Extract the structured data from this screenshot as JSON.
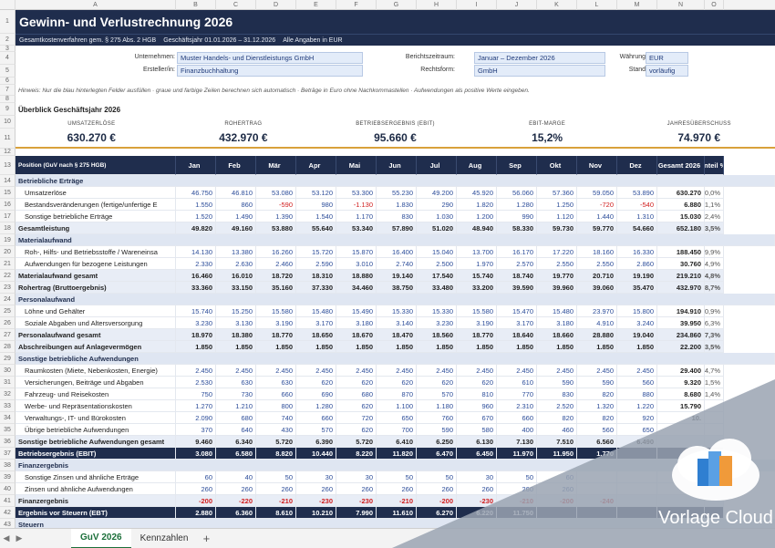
{
  "columns": [
    "A",
    "B",
    "C",
    "D",
    "E",
    "F",
    "G",
    "H",
    "I",
    "J",
    "K",
    "L",
    "M",
    "N",
    "O"
  ],
  "title": "Gewinn- und Verlustrechnung 2026",
  "subtitle": [
    "Gesamtkostenverfahren gem. § 275 Abs. 2 HGB",
    "Geschäftsjahr 01.01.2026 – 31.12.2026",
    "Alle Angaben in EUR"
  ],
  "form": {
    "company_label": "Unternehmen:",
    "company": "Muster Handels- und Dienstleistungs GmbH",
    "creator_label": "Ersteller/in:",
    "creator": "Finanzbuchhaltung",
    "period_label": "Berichtszeitraum:",
    "period": "Januar – Dezember 2026",
    "legal_label": "Rechtsform:",
    "legal": "GmbH",
    "currency_label": "Währung:",
    "currency": "EUR",
    "status_label": "Stand:",
    "status": "vorläufig"
  },
  "hint": "Hinweis:  Nur die blau hinterlegten Felder ausfüllen · graue und farbige Zeilen berechnen sich automatisch · Beträge in Euro ohne Nachkommastellen · Aufwendungen als positive Werte eingeben.",
  "overview_title": "Überblick Geschäftsjahr 2026",
  "kpis": [
    {
      "label": "UMSATZERLÖSE",
      "value": "630.270 €"
    },
    {
      "label": "ROHERTRAG",
      "value": "432.970 €"
    },
    {
      "label": "BETRIEBSERGEBNIS (EBIT)",
      "value": "95.660 €"
    },
    {
      "label": "EBIT-MARGE",
      "value": "15,2%"
    },
    {
      "label": "JAHRESÜBERSCHUSS",
      "value": "74.970 €"
    }
  ],
  "table_header": [
    "Position (GuV nach § 275 HGB)",
    "Jan",
    "Feb",
    "Mär",
    "Apr",
    "Mai",
    "Jun",
    "Jul",
    "Aug",
    "Sep",
    "Okt",
    "Nov",
    "Dez",
    "Gesamt 2026",
    "Anteil %"
  ],
  "rows": [
    {
      "n": "14",
      "type": "grp",
      "cells": [
        "Betriebliche Erträge"
      ]
    },
    {
      "n": "15",
      "type": "item",
      "cells": [
        "Umsatzerlöse",
        "46.750",
        "46.810",
        "53.080",
        "53.120",
        "53.300",
        "55.230",
        "49.200",
        "45.920",
        "56.060",
        "57.360",
        "59.050",
        "53.890",
        "630.270",
        "100,0%"
      ]
    },
    {
      "n": "16",
      "type": "item",
      "cells": [
        "Bestandsveränderungen (fertige/unfertige E",
        "1.550",
        "860",
        "-590",
        "980",
        "-1.130",
        "1.830",
        "290",
        "1.820",
        "1.280",
        "1.250",
        "-720",
        "-540",
        "6.880",
        "1,1%"
      ]
    },
    {
      "n": "17",
      "type": "item",
      "cells": [
        "Sonstige betriebliche Erträge",
        "1.520",
        "1.490",
        "1.390",
        "1.540",
        "1.170",
        "830",
        "1.030",
        "1.200",
        "990",
        "1.120",
        "1.440",
        "1.310",
        "15.030",
        "2,4%"
      ]
    },
    {
      "n": "18",
      "type": "tot",
      "cells": [
        "Gesamtleistung",
        "49.820",
        "49.160",
        "53.880",
        "55.640",
        "53.340",
        "57.890",
        "51.020",
        "48.940",
        "58.330",
        "59.730",
        "59.770",
        "54.660",
        "652.180",
        "103,5%"
      ]
    },
    {
      "n": "19",
      "type": "grp",
      "cells": [
        "Materialaufwand"
      ]
    },
    {
      "n": "20",
      "type": "item",
      "cells": [
        "Roh-, Hilfs- und Betriebsstoffe / Wareneinsa",
        "14.130",
        "13.380",
        "16.260",
        "15.720",
        "15.870",
        "16.400",
        "15.040",
        "13.700",
        "16.170",
        "17.220",
        "18.160",
        "16.330",
        "188.450",
        "29,9%"
      ]
    },
    {
      "n": "21",
      "type": "item",
      "cells": [
        "Aufwendungen für bezogene Leistungen",
        "2.330",
        "2.630",
        "2.460",
        "2.590",
        "3.010",
        "2.740",
        "2.500",
        "1.970",
        "2.570",
        "2.550",
        "2.550",
        "2.860",
        "30.760",
        "4,9%"
      ]
    },
    {
      "n": "22",
      "type": "tot",
      "cells": [
        "Materialaufwand gesamt",
        "16.460",
        "16.010",
        "18.720",
        "18.310",
        "18.880",
        "19.140",
        "17.540",
        "15.740",
        "18.740",
        "19.770",
        "20.710",
        "19.190",
        "219.210",
        "34,8%"
      ]
    },
    {
      "n": "23",
      "type": "tot",
      "cells": [
        "Rohertrag (Bruttoergebnis)",
        "33.360",
        "33.150",
        "35.160",
        "37.330",
        "34.460",
        "38.750",
        "33.480",
        "33.200",
        "39.590",
        "39.960",
        "39.060",
        "35.470",
        "432.970",
        "68,7%"
      ]
    },
    {
      "n": "24",
      "type": "grp",
      "cells": [
        "Personalaufwand"
      ]
    },
    {
      "n": "25",
      "type": "item",
      "cells": [
        "Löhne und Gehälter",
        "15.740",
        "15.250",
        "15.580",
        "15.480",
        "15.490",
        "15.330",
        "15.330",
        "15.580",
        "15.470",
        "15.480",
        "23.970",
        "15.800",
        "194.910",
        "30,9%"
      ]
    },
    {
      "n": "26",
      "type": "item",
      "cells": [
        "Soziale Abgaben und Altersversorgung",
        "3.230",
        "3.130",
        "3.190",
        "3.170",
        "3.180",
        "3.140",
        "3.230",
        "3.190",
        "3.170",
        "3.180",
        "4.910",
        "3.240",
        "39.950",
        "6,3%"
      ]
    },
    {
      "n": "27",
      "type": "tot",
      "cells": [
        "Personalaufwand gesamt",
        "18.970",
        "18.380",
        "18.770",
        "18.650",
        "18.670",
        "18.470",
        "18.560",
        "18.770",
        "18.640",
        "18.660",
        "28.880",
        "19.040",
        "234.860",
        "37,3%"
      ]
    },
    {
      "n": "28",
      "type": "tot",
      "cells": [
        "Abschreibungen auf Anlagevermögen",
        "1.850",
        "1.850",
        "1.850",
        "1.850",
        "1.850",
        "1.850",
        "1.850",
        "1.850",
        "1.850",
        "1.850",
        "1.850",
        "1.850",
        "22.200",
        "3,5%"
      ]
    },
    {
      "n": "29",
      "type": "grp",
      "cells": [
        "Sonstige betriebliche Aufwendungen"
      ]
    },
    {
      "n": "30",
      "type": "item",
      "cells": [
        "Raumkosten (Miete, Nebenkosten, Energie)",
        "2.450",
        "2.450",
        "2.450",
        "2.450",
        "2.450",
        "2.450",
        "2.450",
        "2.450",
        "2.450",
        "2.450",
        "2.450",
        "2.450",
        "29.400",
        "4,7%"
      ]
    },
    {
      "n": "31",
      "type": "item",
      "cells": [
        "Versicherungen, Beiträge und Abgaben",
        "2.530",
        "630",
        "630",
        "620",
        "620",
        "620",
        "620",
        "620",
        "610",
        "590",
        "590",
        "560",
        "9.320",
        "1,5%"
      ]
    },
    {
      "n": "32",
      "type": "item",
      "cells": [
        "Fahrzeug- und Reisekosten",
        "750",
        "730",
        "660",
        "690",
        "680",
        "870",
        "570",
        "810",
        "770",
        "830",
        "820",
        "880",
        "8.680",
        "1,4%"
      ]
    },
    {
      "n": "33",
      "type": "item",
      "cells": [
        "Werbe- und Repräsentationskosten",
        "1.270",
        "1.210",
        "800",
        "1.280",
        "620",
        "1.100",
        "1.180",
        "960",
        "2.310",
        "2.520",
        "1.320",
        "1.220",
        "15.790",
        ""
      ]
    },
    {
      "n": "34",
      "type": "item",
      "cells": [
        "Verwaltungs-, IT- und Bürokosten",
        "2.090",
        "680",
        "740",
        "660",
        "720",
        "650",
        "760",
        "670",
        "660",
        "820",
        "820",
        "920",
        "10.",
        ""
      ]
    },
    {
      "n": "35",
      "type": "item",
      "cells": [
        "Übrige betriebliche Aufwendungen",
        "370",
        "640",
        "430",
        "570",
        "620",
        "700",
        "590",
        "580",
        "400",
        "460",
        "560",
        "650",
        "",
        ""
      ]
    },
    {
      "n": "36",
      "type": "tot",
      "cells": [
        "Sonstige betriebliche Aufwendungen gesamt",
        "9.460",
        "6.340",
        "5.720",
        "6.390",
        "5.720",
        "6.410",
        "6.250",
        "6.130",
        "7.130",
        "7.510",
        "6.560",
        "6.490",
        "",
        ""
      ]
    },
    {
      "n": "37",
      "type": "ebit",
      "cells": [
        "Betriebsergebnis (EBIT)",
        "3.080",
        "6.580",
        "8.820",
        "10.440",
        "8.220",
        "11.820",
        "6.470",
        "6.450",
        "11.970",
        "11.950",
        "1.770",
        "",
        "",
        ""
      ]
    },
    {
      "n": "38",
      "type": "grp",
      "cells": [
        "Finanzergebnis"
      ]
    },
    {
      "n": "39",
      "type": "item",
      "cells": [
        "Sonstige Zinsen und ähnliche Erträge",
        "60",
        "40",
        "50",
        "30",
        "30",
        "50",
        "50",
        "30",
        "50",
        "60",
        "",
        "",
        "",
        ""
      ]
    },
    {
      "n": "40",
      "type": "item",
      "cells": [
        "Zinsen und ähnliche Aufwendungen",
        "260",
        "260",
        "260",
        "260",
        "260",
        "260",
        "260",
        "260",
        "260",
        "260",
        "",
        "",
        "",
        ""
      ]
    },
    {
      "n": "41",
      "type": "tot",
      "cells": [
        "Finanzergebnis",
        "-200",
        "-220",
        "-210",
        "-230",
        "-230",
        "-210",
        "-200",
        "-230",
        "-210",
        "-200",
        "-240",
        "",
        "",
        ""
      ]
    },
    {
      "n": "42",
      "type": "ebit",
      "cells": [
        "Ergebnis vor Steuern (EBT)",
        "2.880",
        "6.360",
        "8.610",
        "10.210",
        "7.990",
        "11.610",
        "6.270",
        "6.220",
        "11.750",
        "",
        "",
        "",
        "",
        ""
      ]
    },
    {
      "n": "43",
      "type": "grp",
      "cells": [
        "Steuern"
      ]
    }
  ],
  "tabs": [
    "GuV 2026",
    "Kennzahlen"
  ],
  "watermark": "Vorlage Cloud",
  "colors": {
    "navy": "#1f2d4d",
    "accent": "#d9a13b",
    "input": "#e3ecf9"
  }
}
